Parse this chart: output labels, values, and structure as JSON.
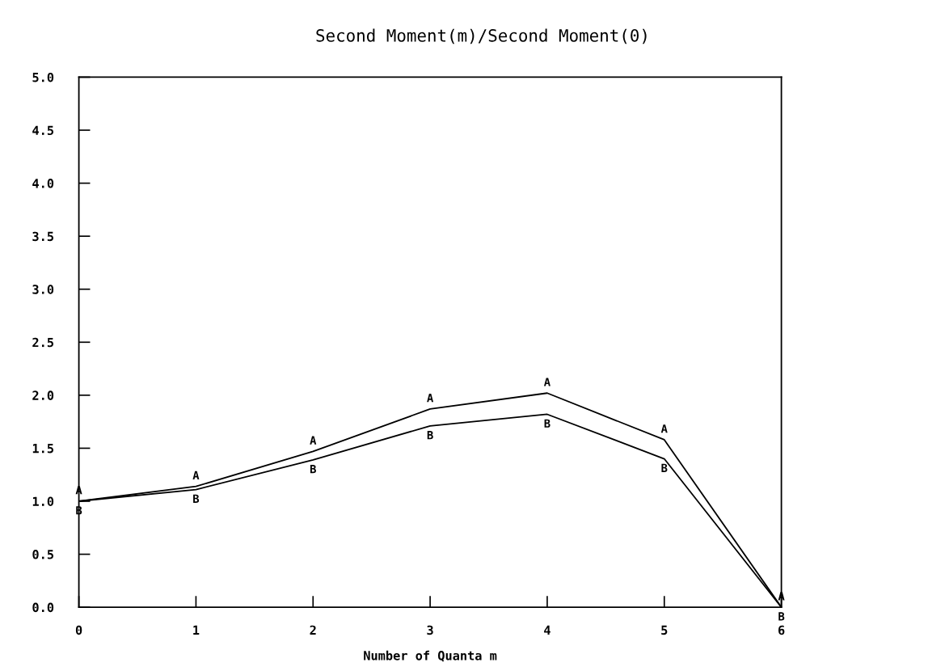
{
  "chart_data": {
    "type": "line",
    "title": "Second Moment(m)/Second Moment(0)",
    "xlabel": "Number of Quanta m",
    "x": [
      0,
      1,
      2,
      3,
      4,
      5,
      6
    ],
    "series": [
      {
        "name": "A",
        "color": "#000000",
        "values": [
          1.0,
          1.14,
          1.47,
          1.87,
          2.02,
          1.58,
          0.0
        ]
      },
      {
        "name": "B",
        "color": "#000000",
        "values": [
          1.0,
          1.11,
          1.39,
          1.71,
          1.82,
          1.4,
          0.0
        ]
      }
    ],
    "xlim": [
      0,
      6
    ],
    "xticks": [
      0,
      1,
      2,
      3,
      4,
      5,
      6
    ],
    "ylim": [
      0,
      5
    ],
    "yticks": [
      {
        "value": 0,
        "label": "0.0"
      },
      {
        "value": 0.5,
        "label": "0.5"
      },
      {
        "value": 1,
        "label": "1.0"
      },
      {
        "value": 1.5,
        "label": "1.5"
      },
      {
        "value": 2,
        "label": "2.0"
      },
      {
        "value": 2.5,
        "label": "2.5"
      },
      {
        "value": 3,
        "label": "3.0"
      },
      {
        "value": 3.5,
        "label": "3.5"
      },
      {
        "value": 4,
        "label": "4.0"
      },
      {
        "value": 4.5,
        "label": "4.5"
      },
      {
        "value": 5,
        "label": "5.0"
      }
    ],
    "grid": false,
    "line_style": "solid"
  }
}
